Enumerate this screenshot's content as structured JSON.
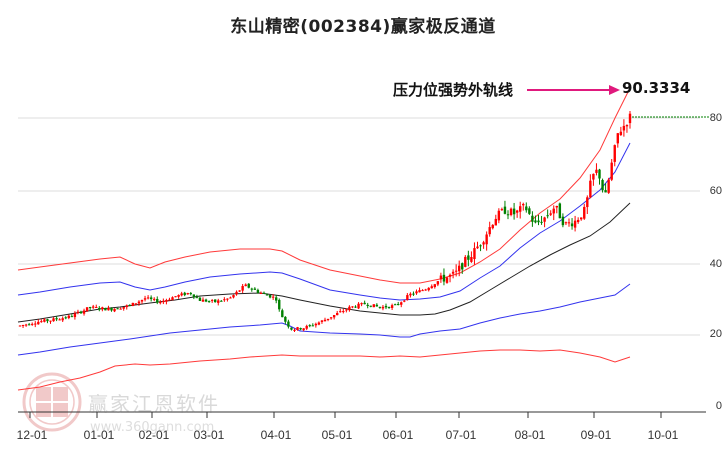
{
  "title": "东山精密(002384)赢家极反通道",
  "annotation": {
    "label": "压力位强势外轨线",
    "value": "90.3334",
    "arrow_color": "#e0197d"
  },
  "watermark": {
    "text": "赢家江恩软件",
    "url": "www.360gann.com",
    "seal": [
      "江",
      "赢",
      "恩",
      "家"
    ]
  },
  "colors": {
    "up_candle": "#ff0000",
    "down_candle": "#008000",
    "outer_band": "#ff3333",
    "inner_band": "#3333ff",
    "mid_line": "#222222",
    "grid": "#dddddd",
    "last_price_line": "#008000"
  },
  "chart_data": {
    "type": "candlestick",
    "title": "东山精密(002384)赢家极反通道",
    "xlabel": "",
    "ylabel": "",
    "ylim": [
      0,
      90
    ],
    "grid": "horizontal",
    "y_ticks": [
      "0",
      "20",
      "40",
      "60",
      "80"
    ],
    "x_ticks": [
      "12-01",
      "01-01",
      "02-01",
      "03-01",
      "04-01",
      "05-01",
      "06-01",
      "07-01",
      "08-01",
      "09-01",
      "10-01"
    ],
    "annotations": [
      {
        "text": "压力位强势外轨线",
        "value": 90.3334
      }
    ],
    "series": [
      {
        "name": "upper_outer_band",
        "color": "red",
        "x": [
          "12-01",
          "01-01",
          "02-01",
          "03-01",
          "04-01",
          "05-01",
          "06-01",
          "07-01",
          "08-01",
          "09-01",
          "09-20"
        ],
        "values": [
          39.5,
          41.5,
          43,
          44.5,
          45.5,
          42,
          37.5,
          40,
          55,
          70,
          90.3
        ]
      },
      {
        "name": "upper_inner_band",
        "color": "blue",
        "x": [
          "12-01",
          "01-01",
          "02-01",
          "03-01",
          "04-01",
          "05-01",
          "06-01",
          "07-01",
          "08-01",
          "09-01",
          "09-20"
        ],
        "values": [
          32,
          35,
          37,
          39,
          39.5,
          34.5,
          31,
          32,
          45,
          59,
          75
        ]
      },
      {
        "name": "middle_line",
        "color": "black",
        "x": [
          "12-01",
          "01-01",
          "02-01",
          "03-01",
          "04-01",
          "05-01",
          "06-01",
          "07-01",
          "08-01",
          "09-01",
          "09-20"
        ],
        "values": [
          24,
          26.5,
          28.5,
          30.5,
          31,
          29,
          27.5,
          28.5,
          37,
          48,
          57
        ]
      },
      {
        "name": "lower_inner_band",
        "color": "blue",
        "x": [
          "12-01",
          "01-01",
          "02-01",
          "03-01",
          "04-01",
          "05-01",
          "06-01",
          "07-01",
          "08-01",
          "09-01",
          "09-20"
        ],
        "values": [
          15.5,
          18.5,
          21,
          23,
          24.5,
          22,
          21.5,
          20.5,
          28,
          31,
          35
        ]
      },
      {
        "name": "lower_outer_band",
        "color": "red",
        "x": [
          "12-01",
          "01-01",
          "02-01",
          "03-01",
          "04-01",
          "05-01",
          "06-01",
          "07-01",
          "08-01",
          "09-01",
          "09-20"
        ],
        "values": [
          6,
          9,
          12,
          14.5,
          15.5,
          15.5,
          16,
          16,
          17,
          16.5,
          15
        ]
      },
      {
        "name": "price_close",
        "color": "red/green candles",
        "x": [
          "12-01",
          "01-01",
          "02-01",
          "03-01",
          "04-01",
          "05-01",
          "06-01",
          "07-01",
          "08-01",
          "09-01",
          "09-20"
        ],
        "values": [
          24.5,
          29,
          32,
          31,
          30,
          24,
          29,
          36,
          52,
          62,
          82
        ]
      }
    ],
    "last_price": 80.5
  }
}
